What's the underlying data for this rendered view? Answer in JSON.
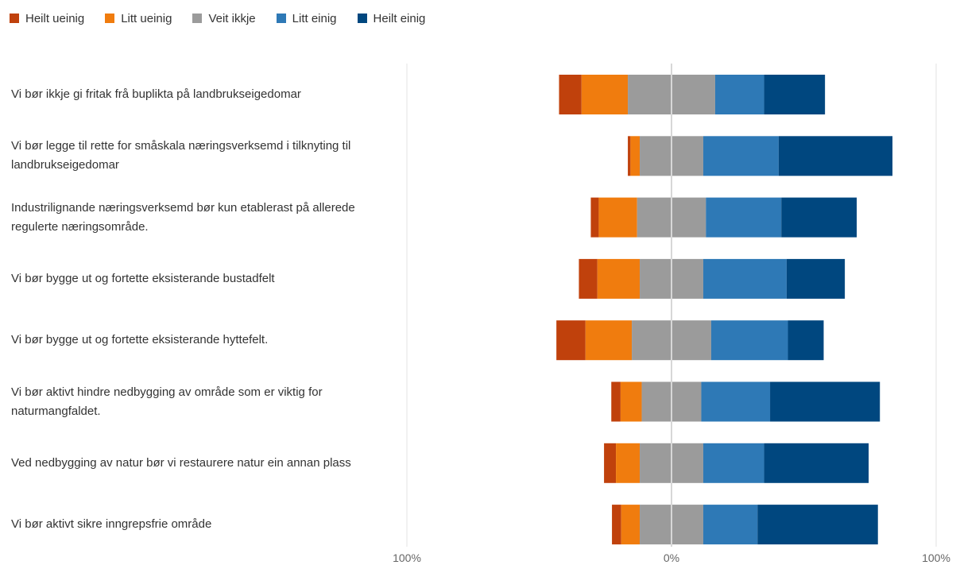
{
  "chart_data": {
    "type": "bar",
    "orientation": "horizontal-diverging-stacked",
    "legend": {
      "position": "top-left",
      "entries": [
        "Heilt ueinig",
        "Litt ueinig",
        "Veit ikkje",
        "Litt einig",
        "Heilt einig"
      ]
    },
    "colors": [
      "#c0410c",
      "#f07c0e",
      "#9b9b9b",
      "#2e79b6",
      "#00477f"
    ],
    "categories": [
      "Vi bør ikkje gi fritak frå buplikta på landbrukseigedomar",
      "Vi bør legge til rette for småskala næringsverksemd i tilknyting til landbrukseigedomar",
      "Industrilignande næringsverksemd bør kun etablerast på allerede regulerte næringsområde.",
      "Vi bør bygge ut og fortette eksisterande bustadfelt",
      "Vi bør bygge ut og fortette eksisterande hyttefelt.",
      "Vi bør aktivt hindre nedbygging av område som er viktig for naturmangfaldet.",
      "Ved nedbygging av natur bør vi restaurere natur ein annan plass",
      "Vi bør aktivt sikre inngrepsfrie område"
    ],
    "series": [
      {
        "name": "Heilt ueinig",
        "values": [
          8.5,
          1,
          3,
          7,
          11,
          3.5,
          4.5,
          3.5
        ]
      },
      {
        "name": "Litt ueinig",
        "values": [
          17.5,
          3.5,
          14.5,
          16,
          17.5,
          8,
          9,
          7
        ]
      },
      {
        "name": "Veit ikkje",
        "values": [
          33,
          24,
          26,
          24,
          30,
          22.5,
          24,
          24
        ]
      },
      {
        "name": "Litt einig",
        "values": [
          18.5,
          28.5,
          28.5,
          31.5,
          29,
          26,
          23,
          20.5
        ]
      },
      {
        "name": "Heilt einig",
        "values": [
          23,
          43,
          28.5,
          22,
          13.5,
          41.5,
          39.5,
          45.5
        ]
      }
    ],
    "xlim": [
      -100,
      100
    ],
    "tick_labels": [
      "100%",
      "0%",
      "100%"
    ],
    "grid": true
  }
}
